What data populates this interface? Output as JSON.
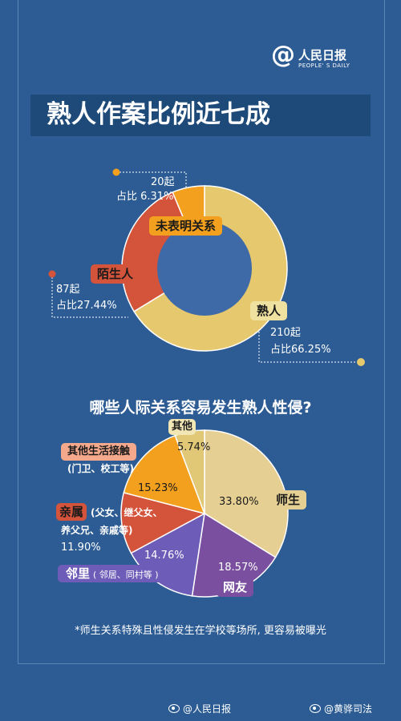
{
  "logo": {
    "mark": "@",
    "name": "人民日报",
    "sub": "PEOPLE' S DAILY"
  },
  "title": "熟人作案比例近七成",
  "colors": {
    "background": "#2c5c93",
    "acquaintance": "#e6c86e",
    "stranger": "#d3533b",
    "unspecified": "#f2a01e",
    "donut_hole": "#3e6aa8"
  },
  "donut": {
    "labels": {
      "unspecified": {
        "count": "20起",
        "pct": "占比 6.31%",
        "tag": "未表明关系"
      },
      "stranger": {
        "count": "87起",
        "pct": "占比27.44%",
        "tag": "陌生人"
      },
      "acquaintance": {
        "count": "210起",
        "pct": "占比66.25%",
        "tag": "熟人"
      }
    }
  },
  "subtitle": "哪些人际关系容易发生熟人性侵?",
  "pie": {
    "labels": {
      "other": {
        "tag": "其他",
        "pct": "5.74%"
      },
      "daily": {
        "tag": "其他生活接触",
        "detail": "(门卫、校工等)",
        "pct": "15.23%"
      },
      "relatives": {
        "tag": "亲属",
        "detail_1": "(父女、继父女、",
        "detail_2": "养父兄、亲戚等)",
        "pct": "11.90%"
      },
      "neighbors": {
        "tag": "邻里",
        "detail": "( 邻居、同村等 )",
        "pct": "14.76%"
      },
      "online": {
        "tag": "网友",
        "pct": "18.57%"
      },
      "teacher": {
        "tag": "师生",
        "pct": "33.80%"
      }
    }
  },
  "footnote": "*师生关系特殊且性侵发生在学校等场所, 更容易被曝光",
  "credits": [
    "@人民日报",
    "@黄骅司法"
  ],
  "chart_data": [
    {
      "type": "pie",
      "title": "熟人作案比例近七成",
      "categories": [
        "熟人",
        "陌生人",
        "未表明关系"
      ],
      "counts": [
        210,
        87,
        20
      ],
      "values": [
        66.25,
        27.44,
        6.31
      ],
      "colors": [
        "#e6c86e",
        "#d3533b",
        "#f2a01e"
      ]
    },
    {
      "type": "pie",
      "title": "哪些人际关系容易发生熟人性侵?",
      "categories": [
        "师生",
        "网友",
        "邻里",
        "亲属",
        "其他生活接触",
        "其他"
      ],
      "values": [
        33.8,
        18.57,
        14.76,
        11.9,
        15.23,
        5.74
      ],
      "colors": [
        "#e5cf93",
        "#7a4fa0",
        "#6d5db8",
        "#d3533b",
        "#f2a01e",
        "#e1c877"
      ]
    }
  ]
}
